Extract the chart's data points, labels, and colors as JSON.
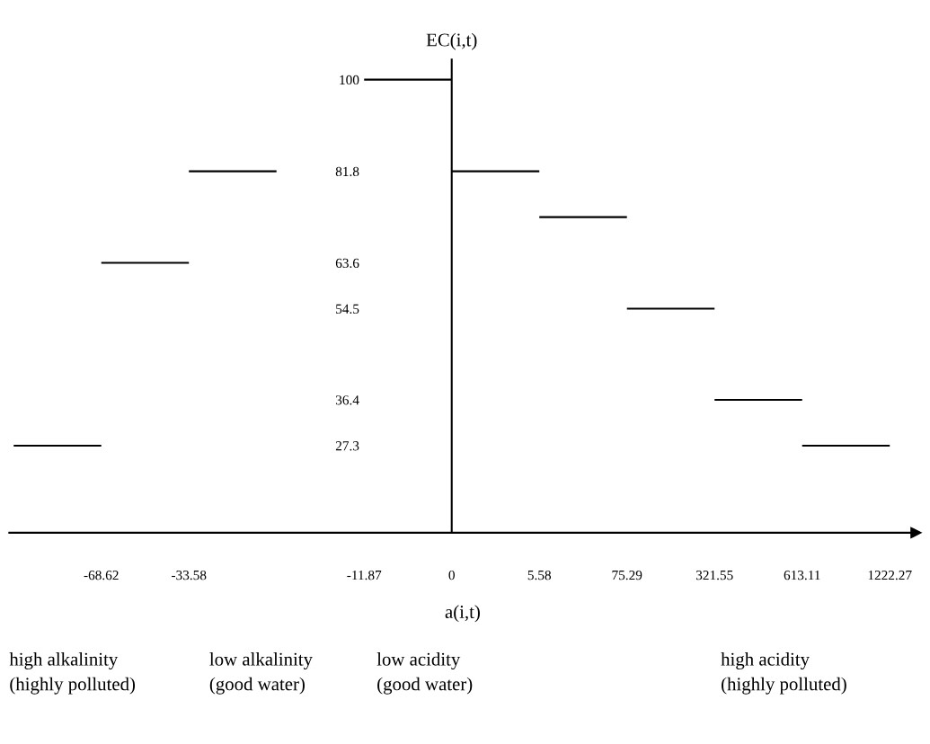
{
  "chart_data": {
    "type": "line",
    "xlabel": "a(i,t)",
    "ylabel": "EC(i,t)",
    "categories": [
      null,
      "-68.62",
      "-33.58",
      null,
      "-11.87",
      "0",
      "5.58",
      "75.29",
      "321.55",
      "613.11",
      "1222.27"
    ],
    "series": [
      {
        "color": "#000000",
        "values": [
          27.3,
          27.3,
          null,
          null,
          null,
          null,
          null,
          null,
          null,
          null,
          null
        ]
      },
      {
        "color": "#000000",
        "values": [
          null,
          63.6,
          63.6,
          null,
          null,
          null,
          null,
          null,
          null,
          null,
          null
        ]
      },
      {
        "color": "#000000",
        "values": [
          null,
          null,
          81.8,
          81.8,
          null,
          null,
          null,
          null,
          null,
          null,
          null
        ]
      },
      {
        "color": "#000000",
        "values": [
          null,
          null,
          null,
          null,
          100,
          100,
          null,
          null,
          null,
          null,
          null
        ]
      },
      {
        "color": "#000000",
        "values": [
          null,
          null,
          null,
          null,
          null,
          81.8,
          81.8,
          null,
          null,
          null,
          null
        ]
      },
      {
        "color": "#000000",
        "values": [
          null,
          null,
          null,
          null,
          null,
          null,
          72.7,
          72.7,
          null,
          null,
          null
        ]
      },
      {
        "color": "#000000",
        "values": [
          null,
          null,
          null,
          null,
          null,
          null,
          null,
          54.5,
          54.5,
          null,
          null
        ]
      },
      {
        "color": "#000000",
        "values": [
          null,
          null,
          null,
          null,
          null,
          null,
          null,
          null,
          36.4,
          36.4,
          null
        ]
      },
      {
        "color": "#000000",
        "values": [
          null,
          null,
          null,
          null,
          null,
          null,
          null,
          null,
          null,
          27.3,
          27.3
        ]
      }
    ],
    "ylim": [
      10,
      104
    ],
    "yticks": [
      27.3,
      36.4,
      54.5,
      63.6,
      81.8,
      100
    ],
    "ref_lines": [
      {
        "axis": "x",
        "value": "0"
      }
    ],
    "grid": false,
    "legend": false,
    "annotations": [
      "high alkalinity\n(highly polluted)",
      "low alkalinity\n(good water)",
      "low acidity\n(good water)",
      "high acidity\n(highly polluted)"
    ]
  }
}
